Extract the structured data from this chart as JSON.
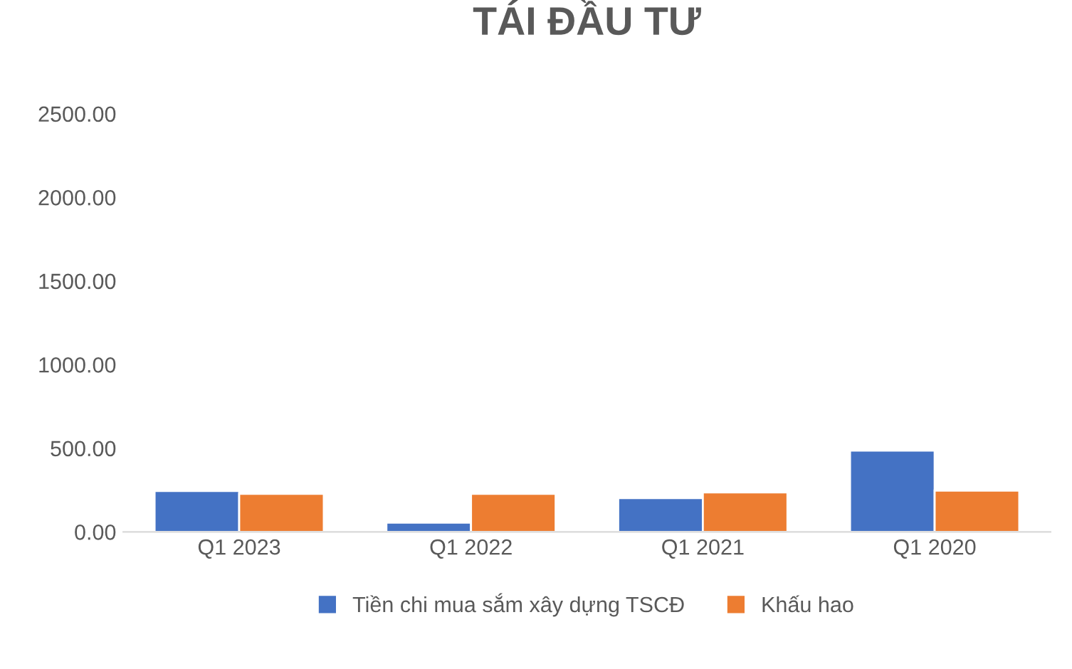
{
  "chart_data": {
    "type": "bar",
    "title": "TÁI ĐẦU TƯ",
    "categories": [
      "Q1 2023",
      "Q1 2022",
      "Q1 2021",
      "Q1 2020"
    ],
    "series": [
      {
        "name": "Tiền chi mua sắm xây dựng TSCĐ",
        "color": "#4472c4",
        "values": [
          244,
          55,
          202,
          486
        ]
      },
      {
        "name": "Khấu hao",
        "color": "#ed7d31",
        "values": [
          227,
          227,
          236,
          247
        ]
      }
    ],
    "ylim": [
      0,
      2500
    ],
    "yticks": [
      {
        "value": 0,
        "label": "0.00"
      },
      {
        "value": 500,
        "label": "500.00"
      },
      {
        "value": 1000,
        "label": "1000.00"
      },
      {
        "value": 1500,
        "label": "1500.00"
      },
      {
        "value": 2000,
        "label": "2000.00"
      },
      {
        "value": 2500,
        "label": "2500.00"
      }
    ],
    "grid": false,
    "legend": "bottom"
  }
}
